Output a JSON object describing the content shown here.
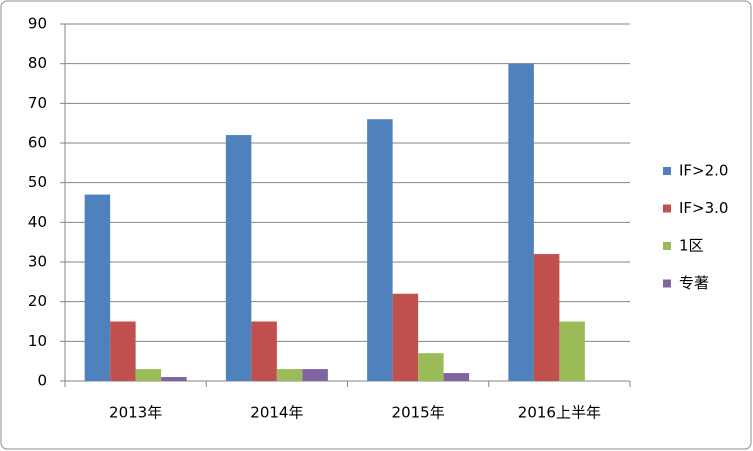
{
  "chart_data": {
    "type": "bar",
    "categories": [
      "2013年",
      "2014年",
      "2015年",
      "2016上半年"
    ],
    "series": [
      {
        "name": "IF>2.0",
        "color": "#4f81bd",
        "values": [
          47,
          62,
          66,
          80
        ]
      },
      {
        "name": "IF>3.0",
        "color": "#c0504d",
        "values": [
          15,
          15,
          22,
          32
        ]
      },
      {
        "name": "1区",
        "color": "#9bbb59",
        "values": [
          3,
          3,
          7,
          15
        ]
      },
      {
        "name": "专著",
        "color": "#8064a2",
        "values": [
          1,
          3,
          2,
          0
        ]
      }
    ],
    "ylim": [
      0,
      90
    ],
    "yticks": [
      0,
      10,
      20,
      30,
      40,
      50,
      60,
      70,
      80,
      90
    ],
    "grid": true,
    "legend": "right"
  }
}
